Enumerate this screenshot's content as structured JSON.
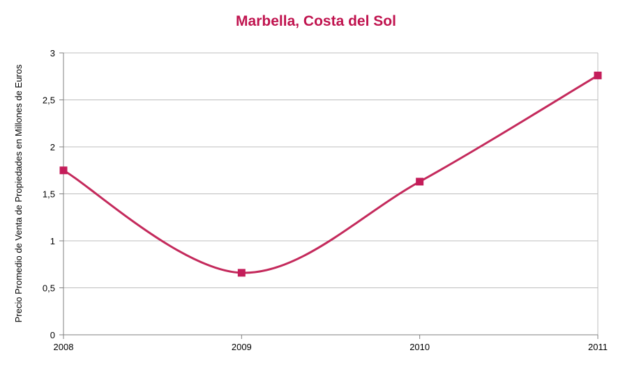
{
  "chart_data": {
    "type": "line",
    "title": "Marbella, Costa del Sol",
    "xlabel": "",
    "ylabel": "Precio Promedio de Venta de Propiedades en Millones de Euros",
    "categories": [
      "2008",
      "2009",
      "2010",
      "2011"
    ],
    "series": [
      {
        "values": [
          1.75,
          0.66,
          1.63,
          2.76
        ]
      }
    ],
    "ylim": [
      0,
      3
    ],
    "yticks": [
      0,
      0.5,
      1,
      1.5,
      2,
      2.5,
      3
    ],
    "ytick_labels": [
      "0",
      "0,5",
      "1",
      "1,5",
      "2",
      "2,5",
      "3"
    ],
    "grid": "horizontal",
    "smooth": true,
    "marker": "square",
    "colors": {
      "title": "#c0144f",
      "line": "#c42a5c",
      "marker": "#c41d5a",
      "grid": "#bdbdbd",
      "axis": "#808080"
    }
  }
}
